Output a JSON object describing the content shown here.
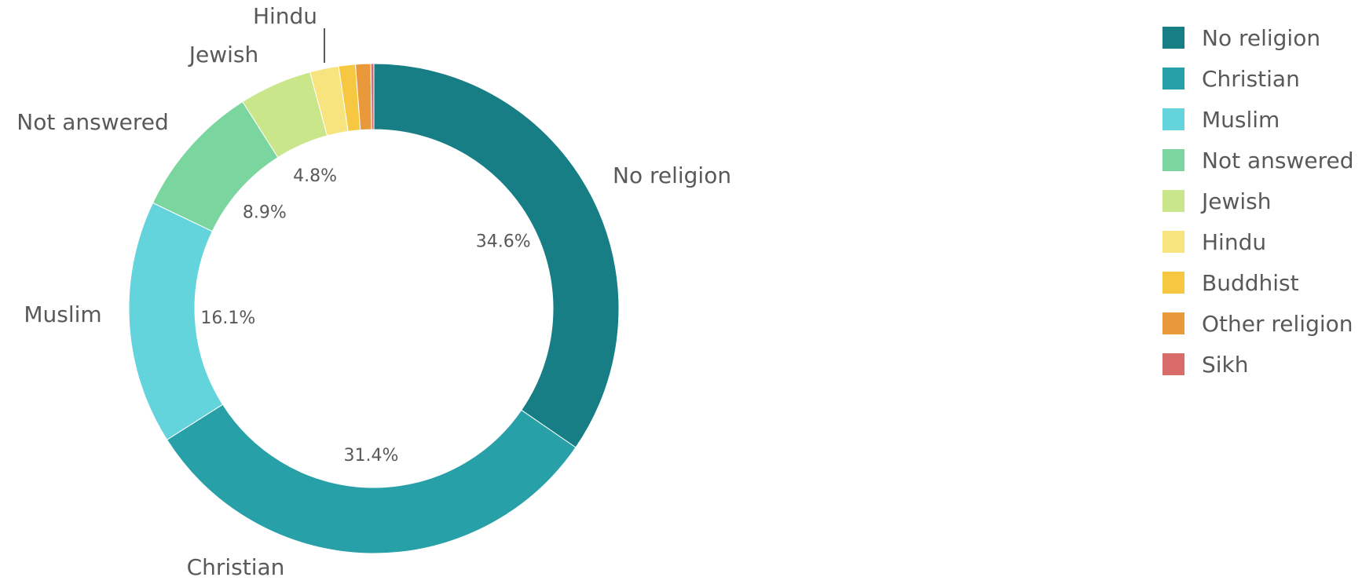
{
  "chart_data": {
    "type": "pie",
    "variant": "donut",
    "title": "",
    "categories": [
      "No religion",
      "Christian",
      "Muslim",
      "Not answered",
      "Jewish",
      "Hindu",
      "Buddhist",
      "Other religion",
      "Sikh"
    ],
    "values": [
      34.6,
      31.4,
      16.1,
      8.9,
      4.8,
      1.9,
      1.1,
      1.0,
      0.2
    ],
    "value_labels": [
      "34.6%",
      "31.4%",
      "16.1%",
      "8.9%",
      "4.8%",
      "",
      "",
      "",
      ""
    ],
    "outer_labels": [
      "No religion",
      "Christian",
      "Muslim",
      "Not answered",
      "Jewish",
      "Hindu",
      "",
      "",
      ""
    ],
    "colors": [
      "#167e84",
      "#27a0a8",
      "#63d3dc",
      "#7bd59f",
      "#c9e78a",
      "#f7e47f",
      "#f6c842",
      "#e9983c",
      "#d96b6b"
    ],
    "legend_position": "right",
    "start_angle": "12 o'clock",
    "direction": "clockwise"
  }
}
